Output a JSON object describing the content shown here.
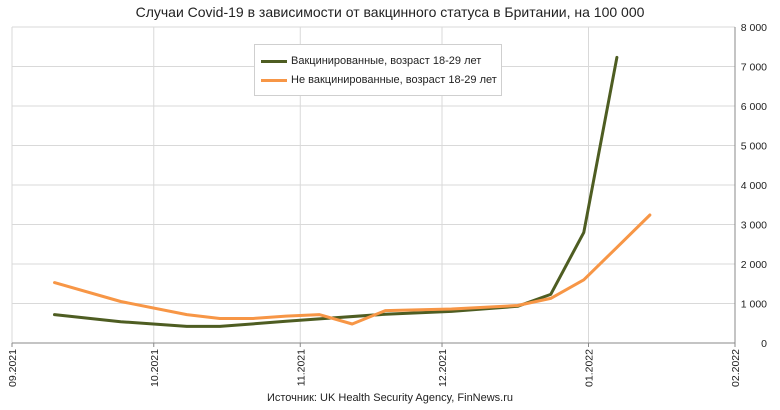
{
  "chart_data": {
    "type": "line",
    "title": "Случаи Covid-19 в зависимости от вакцинного статуса в Британии, на 100 000",
    "source": "Источник: UK Health Security Agency, FinNews.ru",
    "x_ticks": [
      "09.2021",
      "10.2021",
      "11.2021",
      "12.2021",
      "01.2022",
      "02.2022"
    ],
    "y_ticks": [
      "0",
      "1 000",
      "2 000",
      "3 000",
      "4 000",
      "5 000",
      "6 000",
      "7 000",
      "8 000"
    ],
    "ylim": [
      0,
      8000
    ],
    "y_axis_side": "right",
    "grid": true,
    "legend_position": "top-center",
    "series": [
      {
        "name": "Вакцинированные, возраст 18-29 лет",
        "color": "#4e5d22",
        "x": [
          "2021-09-10",
          "2021-09-24",
          "2021-10-08",
          "2021-10-15",
          "2021-10-29",
          "2021-11-05",
          "2021-11-19",
          "2021-12-03",
          "2021-12-17",
          "2021-12-24",
          "2021-12-31",
          "2022-01-07"
        ],
        "y": [
          720,
          540,
          420,
          420,
          550,
          610,
          730,
          800,
          930,
          1230,
          2800,
          7230
        ]
      },
      {
        "name": "Не вакцинированные, возраст 18-29 лет",
        "color": "#f79646",
        "x": [
          "2021-09-10",
          "2021-09-24",
          "2021-10-08",
          "2021-10-15",
          "2021-10-22",
          "2021-10-29",
          "2021-11-05",
          "2021-11-12",
          "2021-11-19",
          "2021-12-03",
          "2021-12-17",
          "2021-12-24",
          "2021-12-31",
          "2022-01-07",
          "2022-01-14"
        ],
        "y": [
          1530,
          1050,
          720,
          620,
          620,
          680,
          720,
          480,
          820,
          860,
          950,
          1130,
          1600,
          2420,
          3240
        ]
      }
    ]
  }
}
